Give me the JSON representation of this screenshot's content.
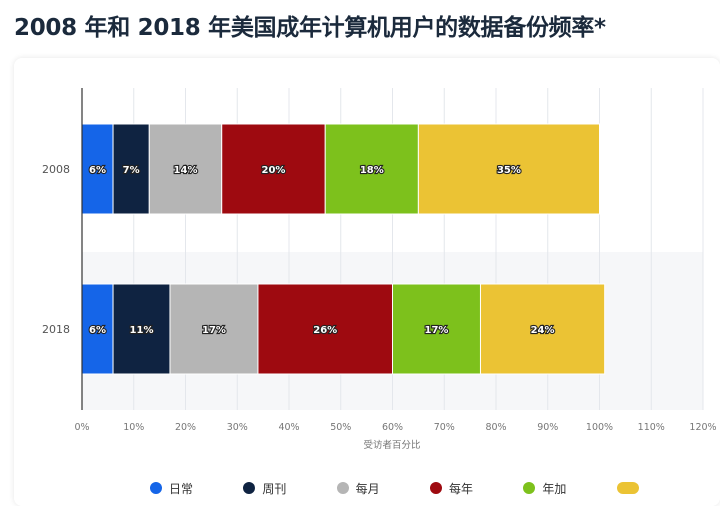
{
  "title": "2008 年和 2018 年美国成年计算机用户的数据备份频率*",
  "chart_data": {
    "type": "bar",
    "orientation": "horizontal",
    "stacked": true,
    "categories": [
      "2008",
      "2018"
    ],
    "series": [
      {
        "name": "日常",
        "color": "#1565e8",
        "values": [
          6,
          6
        ]
      },
      {
        "name": "周刊",
        "color": "#0f2341",
        "values": [
          7,
          11
        ]
      },
      {
        "name": "每月",
        "color": "#b5b5b5",
        "values": [
          14,
          17
        ]
      },
      {
        "name": "每年",
        "color": "#9e0a10",
        "values": [
          20,
          26
        ]
      },
      {
        "name": "年加",
        "color": "#7dc11c",
        "values": [
          18,
          17
        ]
      },
      {
        "name": "",
        "color": "#ebc334",
        "values": [
          35,
          24
        ]
      }
    ],
    "xlabel": "受访者百分比",
    "ylabel": "",
    "xlim": [
      0,
      120
    ],
    "x_ticks": [
      "0%",
      "10%",
      "20%",
      "30%",
      "40%",
      "50%",
      "60%",
      "70%",
      "80%",
      "90%",
      "100%",
      "110%",
      "120%"
    ],
    "grid": true,
    "legend_position": "bottom"
  }
}
